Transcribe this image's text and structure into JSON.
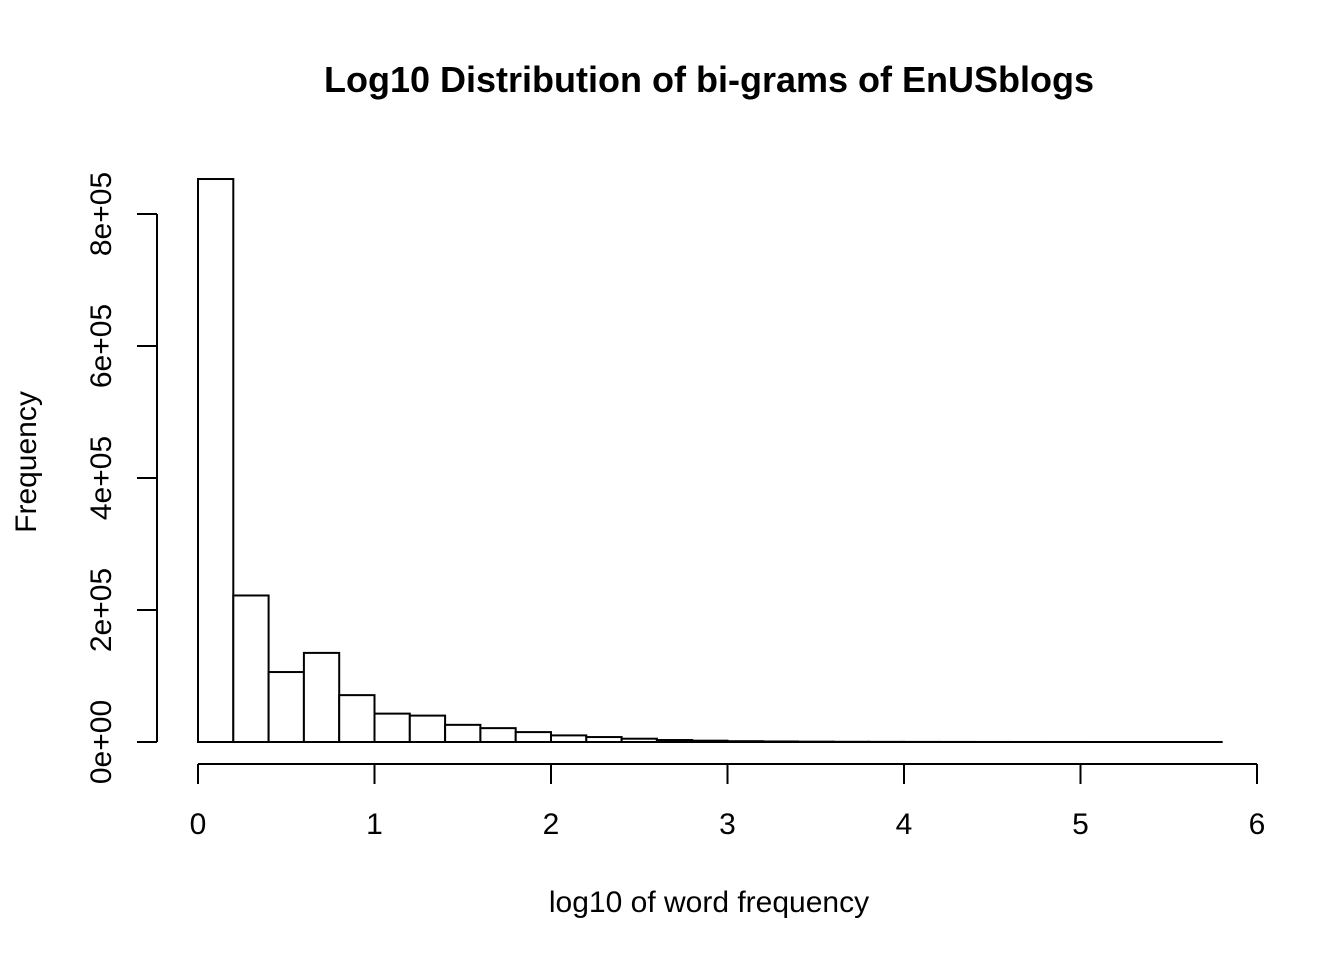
{
  "chart_data": {
    "type": "bar",
    "title": "Log10 Distribution of bi-grams of EnUSblogs",
    "xlabel": "log10 of word frequency",
    "ylabel": "Frequency",
    "xlim": [
      0,
      6
    ],
    "ylim": [
      0,
      850000
    ],
    "x_ticks": [
      0,
      1,
      2,
      3,
      4,
      5,
      6
    ],
    "x_tick_labels": [
      "0",
      "1",
      "2",
      "3",
      "4",
      "5",
      "6"
    ],
    "y_ticks": [
      0,
      200000,
      400000,
      600000,
      800000
    ],
    "y_tick_labels": [
      "0e+00",
      "2e+05",
      "4e+05",
      "6e+05",
      "8e+05"
    ],
    "bins": [
      {
        "x0": 0.0,
        "x1": 0.2,
        "count": 853000
      },
      {
        "x0": 0.2,
        "x1": 0.4,
        "count": 222000
      },
      {
        "x0": 0.4,
        "x1": 0.6,
        "count": 106000
      },
      {
        "x0": 0.6,
        "x1": 0.8,
        "count": 135000
      },
      {
        "x0": 0.8,
        "x1": 1.0,
        "count": 71000
      },
      {
        "x0": 1.0,
        "x1": 1.2,
        "count": 43000
      },
      {
        "x0": 1.2,
        "x1": 1.4,
        "count": 40000
      },
      {
        "x0": 1.4,
        "x1": 1.6,
        "count": 26000
      },
      {
        "x0": 1.6,
        "x1": 1.8,
        "count": 21000
      },
      {
        "x0": 1.8,
        "x1": 2.0,
        "count": 15000
      },
      {
        "x0": 2.0,
        "x1": 2.2,
        "count": 10000
      },
      {
        "x0": 2.2,
        "x1": 2.4,
        "count": 7500
      },
      {
        "x0": 2.4,
        "x1": 2.6,
        "count": 5000
      },
      {
        "x0": 2.6,
        "x1": 2.8,
        "count": 3000
      },
      {
        "x0": 2.8,
        "x1": 3.0,
        "count": 2000
      },
      {
        "x0": 3.0,
        "x1": 3.2,
        "count": 1200
      },
      {
        "x0": 3.2,
        "x1": 3.4,
        "count": 800
      },
      {
        "x0": 3.4,
        "x1": 3.6,
        "count": 500
      },
      {
        "x0": 3.6,
        "x1": 3.8,
        "count": 300
      },
      {
        "x0": 3.8,
        "x1": 4.0,
        "count": 200
      },
      {
        "x0": 4.0,
        "x1": 4.2,
        "count": 120
      },
      {
        "x0": 4.2,
        "x1": 4.4,
        "count": 80
      },
      {
        "x0": 4.4,
        "x1": 4.6,
        "count": 50
      },
      {
        "x0": 4.6,
        "x1": 4.8,
        "count": 30
      },
      {
        "x0": 4.8,
        "x1": 5.0,
        "count": 20
      },
      {
        "x0": 5.0,
        "x1": 5.2,
        "count": 10
      },
      {
        "x0": 5.2,
        "x1": 5.4,
        "count": 6
      },
      {
        "x0": 5.4,
        "x1": 5.6,
        "count": 3
      },
      {
        "x0": 5.6,
        "x1": 5.8,
        "count": 2
      }
    ]
  }
}
